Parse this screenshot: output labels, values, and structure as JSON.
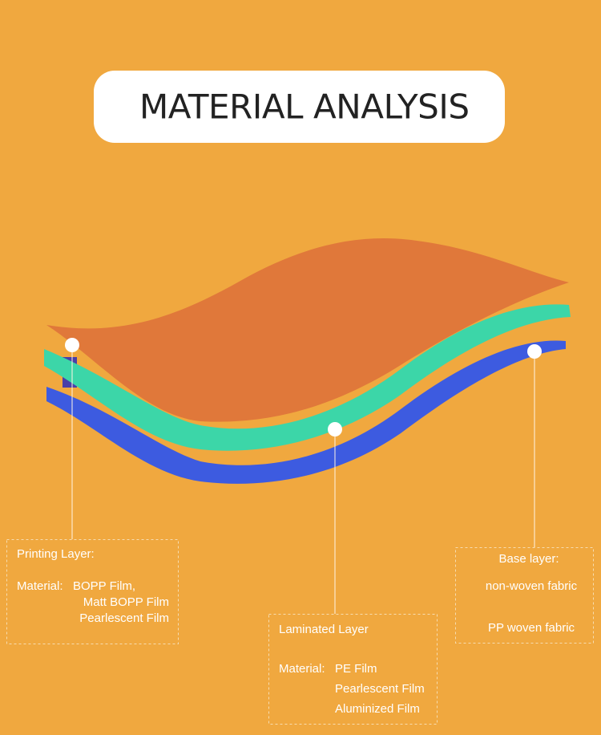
{
  "title": "MATERIAL ANALYSIS",
  "layers": [
    {
      "name": "Printing Layer:",
      "material_label": "Material:",
      "materials": [
        "BOPP Film,",
        "Matt BOPP Film",
        "Pearlescent Film"
      ]
    },
    {
      "name": "Laminated Layer",
      "material_label": "Material:",
      "materials": [
        "PE Film",
        "Pearlescent Film",
        "Aluminized Film"
      ]
    },
    {
      "name": "Base layer:",
      "materials": [
        "non-woven fabric",
        "PP woven fabric"
      ]
    }
  ]
}
